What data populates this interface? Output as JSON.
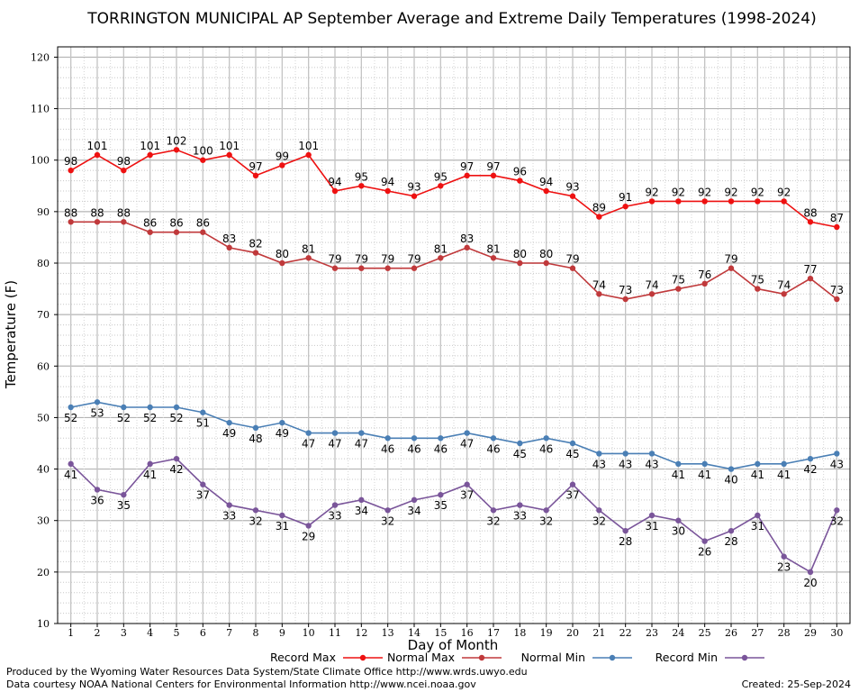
{
  "chart_data": {
    "type": "line",
    "title": "TORRINGTON MUNICIPAL AP September Average and Extreme Daily Temperatures (1998-2024)",
    "xlabel": "Day of Month",
    "ylabel": "Temperature (F)",
    "ylim": [
      10,
      122
    ],
    "yticks": [
      10,
      20,
      30,
      40,
      50,
      60,
      70,
      80,
      90,
      100,
      110,
      120
    ],
    "x": [
      1,
      2,
      3,
      4,
      5,
      6,
      7,
      8,
      9,
      10,
      11,
      12,
      13,
      14,
      15,
      16,
      17,
      18,
      19,
      20,
      21,
      22,
      23,
      24,
      25,
      26,
      27,
      28,
      29,
      30
    ],
    "grid": true,
    "legend_position": "bottom",
    "series": [
      {
        "name": "Record Max",
        "color": "#ee1111",
        "label_pos": "above",
        "values": [
          98,
          101,
          98,
          101,
          102,
          100,
          101,
          97,
          99,
          101,
          94,
          95,
          94,
          93,
          95,
          97,
          97,
          96,
          94,
          93,
          89,
          91,
          92,
          92,
          92,
          92,
          92,
          92,
          88,
          87
        ]
      },
      {
        "name": "Normal Max",
        "color": "#c0393b",
        "label_pos": "above",
        "values": [
          88,
          88,
          88,
          86,
          86,
          86,
          83,
          82,
          80,
          81,
          79,
          79,
          79,
          79,
          81,
          83,
          81,
          80,
          80,
          79,
          74,
          73,
          74,
          75,
          76,
          79,
          75,
          74,
          77,
          73
        ]
      },
      {
        "name": "Normal Min",
        "color": "#4a7fb5",
        "label_pos": "below",
        "values": [
          52,
          53,
          52,
          52,
          52,
          51,
          49,
          48,
          49,
          47,
          47,
          47,
          46,
          46,
          46,
          47,
          46,
          45,
          46,
          45,
          43,
          43,
          43,
          41,
          41,
          40,
          41,
          41,
          42,
          43
        ]
      },
      {
        "name": "Record Min",
        "color": "#7a559a",
        "label_pos": "below",
        "values": [
          41,
          36,
          35,
          41,
          42,
          37,
          33,
          32,
          31,
          29,
          33,
          34,
          32,
          34,
          35,
          37,
          32,
          33,
          32,
          37,
          32,
          28,
          31,
          30,
          26,
          28,
          31,
          23,
          20,
          32
        ]
      }
    ]
  },
  "footer": {
    "produced_by": "Produced by the Wyoming Water Resources Data System/State Climate Office http://www.wrds.uwyo.edu",
    "courtesy": "Data courtesy NOAA National Centers for Environmental Information http://www.ncei.noaa.gov",
    "created": "Created:  25-Sep-2024"
  }
}
